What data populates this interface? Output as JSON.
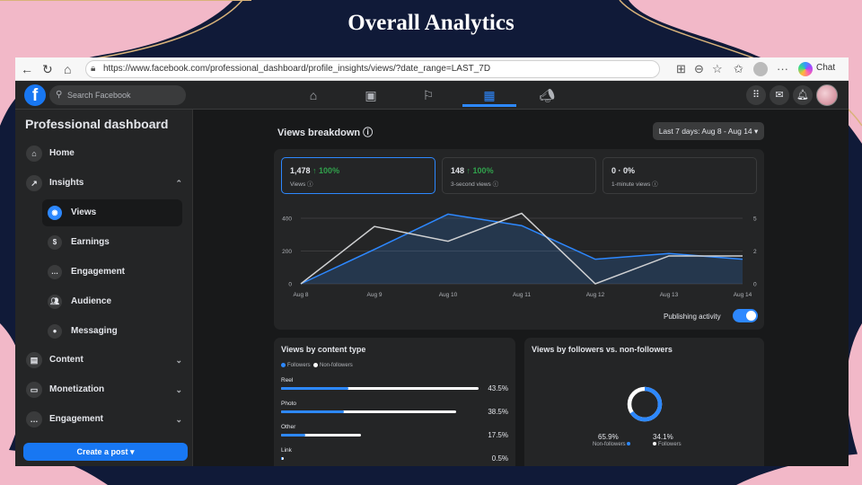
{
  "slide_title": "Overall Analytics",
  "browser": {
    "url": "https://www.facebook.com/professional_dashboard/profile_insights/views/?date_range=LAST_7D",
    "chat_label": "Chat"
  },
  "fb": {
    "search_placeholder": "Search Facebook",
    "sidebar": {
      "title": "Professional dashboard",
      "home": "Home",
      "insights": "Insights",
      "insights_sub": [
        "Views",
        "Earnings",
        "Engagement",
        "Audience",
        "Messaging"
      ],
      "content": "Content",
      "monetization": "Monetization",
      "engagement": "Engagement",
      "create_post": "Create a post"
    },
    "breakdown": {
      "title": "Views breakdown",
      "date_range": "Last 7 days: Aug 8 - Aug 14",
      "metrics": [
        {
          "value": "1,478",
          "change": "↑ 100%",
          "label": "Views"
        },
        {
          "value": "148",
          "change": "↑ 100%",
          "label": "3-second views"
        },
        {
          "value": "0 · 0%",
          "change": "",
          "label": "1-minute views"
        }
      ],
      "publishing_activity": "Publishing activity"
    },
    "content_type": {
      "title": "Views by content type",
      "legend_followers": "Followers",
      "legend_nonfollowers": "Non-followers",
      "rows": [
        {
          "name": "Reel",
          "pct": "43.5%",
          "total": 0.435,
          "followers_share": 0.34
        },
        {
          "name": "Photo",
          "pct": "38.5%",
          "total": 0.385,
          "followers_share": 0.36
        },
        {
          "name": "Other",
          "pct": "17.5%",
          "total": 0.175,
          "followers_share": 0.3
        },
        {
          "name": "Link",
          "pct": "0.5%",
          "total": 0.005,
          "followers_share": 0.5
        }
      ]
    },
    "followers": {
      "title": "Views by followers vs. non-followers",
      "nonfollowers_pct": "65.9%",
      "nonfollowers_label": "Non-followers",
      "followers_pct": "34.1%",
      "followers_label": "Followers",
      "nonfollowers_value": 65.9
    },
    "colors": {
      "accent": "#2d88ff",
      "positive": "#31a24c"
    }
  },
  "chart_data": {
    "type": "line",
    "categories": [
      "Aug 8",
      "Aug 9",
      "Aug 10",
      "Aug 11",
      "Aug 12",
      "Aug 13",
      "Aug 14"
    ],
    "y_left_ticks": [
      "400",
      "200",
      "0"
    ],
    "y_right_ticks": [
      "5",
      "2",
      "0"
    ],
    "ylim_left": [
      0,
      400
    ],
    "ylim_right": [
      0,
      4
    ],
    "grid": true,
    "series": [
      {
        "axis": "left",
        "color": "#2d88ff",
        "fill": true,
        "values": [
          0,
          210,
          425,
          355,
          150,
          185,
          150
        ]
      },
      {
        "axis": "right",
        "color": "#cfd0d2",
        "fill": false,
        "values": [
          0,
          3.5,
          2.6,
          4.3,
          0,
          1.7,
          1.7
        ]
      }
    ]
  }
}
